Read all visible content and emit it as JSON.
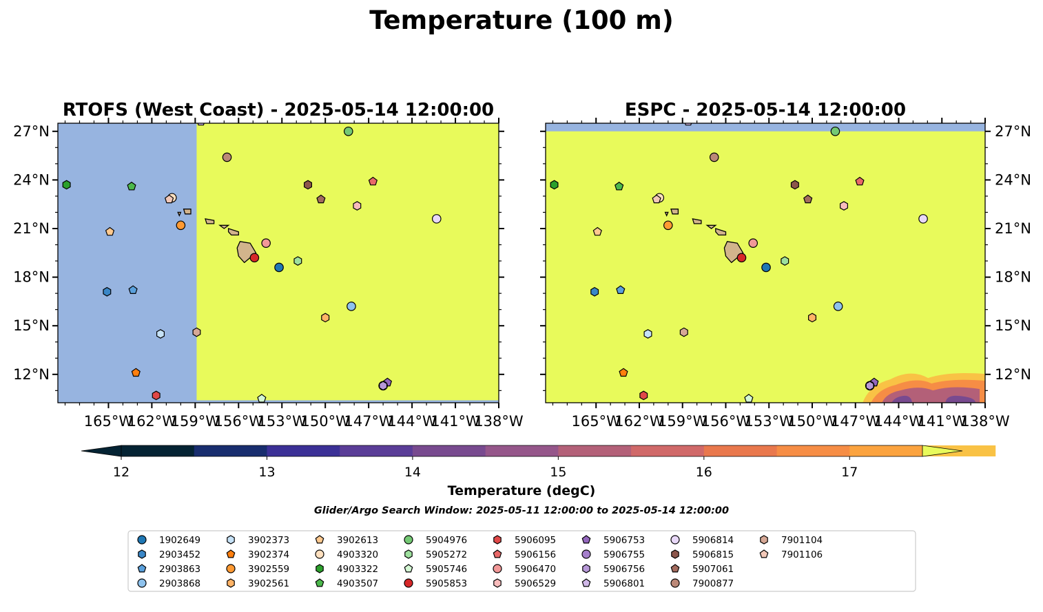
{
  "figure": {
    "title": "Temperature (100 m)",
    "subtitle": "Glider/Argo Search Window: 2025-05-11 12:00:00 to 2025-05-14 12:00:00"
  },
  "colorbar": {
    "label": "Temperature (degC)",
    "range": [
      11.75,
      17.5
    ],
    "ticks": [
      "12",
      "13",
      "14",
      "15",
      "16",
      "17"
    ],
    "colors": [
      "#042333",
      "#182d6e",
      "#3b3096",
      "#5a3d97",
      "#784a8f",
      "#95568a",
      "#b36078",
      "#d06969",
      "#e9784d",
      "#f68d45",
      "#fba33f",
      "#f9c245"
    ],
    "over_color": "#e8fa5b",
    "under_color": "#042333"
  },
  "markers": [
    {
      "id": "1902649",
      "shape": "circle",
      "color": "#1f77b4"
    },
    {
      "id": "2903452",
      "shape": "hexagon",
      "color": "#3a87c7"
    },
    {
      "id": "2903863",
      "shape": "pentagon",
      "color": "#5aa0dc"
    },
    {
      "id": "2903868",
      "shape": "circle",
      "color": "#8ec2ed"
    },
    {
      "id": "3902373",
      "shape": "hexagon",
      "color": "#c6e2f7"
    },
    {
      "id": "3902374",
      "shape": "pentagon",
      "color": "#ff7f0e"
    },
    {
      "id": "3902559",
      "shape": "circle",
      "color": "#ff9a33"
    },
    {
      "id": "3902561",
      "shape": "hexagon",
      "color": "#ffb366"
    },
    {
      "id": "3902613",
      "shape": "pentagon",
      "color": "#ffc98f"
    },
    {
      "id": "4903320",
      "shape": "circle",
      "color": "#ffe0bf"
    },
    {
      "id": "4903322",
      "shape": "hexagon",
      "color": "#2ca02c"
    },
    {
      "id": "4903507",
      "shape": "pentagon",
      "color": "#4cb84c"
    },
    {
      "id": "5904976",
      "shape": "circle",
      "color": "#74c974"
    },
    {
      "id": "5905272",
      "shape": "hexagon",
      "color": "#9ee09e"
    },
    {
      "id": "5905746",
      "shape": "pentagon",
      "color": "#d4f7d4"
    },
    {
      "id": "5905853",
      "shape": "circle",
      "color": "#d62728"
    },
    {
      "id": "5906095",
      "shape": "hexagon",
      "color": "#e04848"
    },
    {
      "id": "5906156",
      "shape": "pentagon",
      "color": "#e86868"
    },
    {
      "id": "5906470",
      "shape": "circle",
      "color": "#f29898"
    },
    {
      "id": "5906529",
      "shape": "hexagon",
      "color": "#f8bcbc"
    },
    {
      "id": "5906753",
      "shape": "pentagon",
      "color": "#9467bd"
    },
    {
      "id": "5906755",
      "shape": "circle",
      "color": "#a57fcb"
    },
    {
      "id": "5906756",
      "shape": "hexagon",
      "color": "#b798d8"
    },
    {
      "id": "5906801",
      "shape": "pentagon",
      "color": "#d0b8e8"
    },
    {
      "id": "5906814",
      "shape": "circle",
      "color": "#e8d8f8"
    },
    {
      "id": "5906815",
      "shape": "hexagon",
      "color": "#8c564b"
    },
    {
      "id": "5907061",
      "shape": "pentagon",
      "color": "#a36b5e"
    },
    {
      "id": "7900877",
      "shape": "circle",
      "color": "#bb8877"
    },
    {
      "id": "7901104",
      "shape": "hexagon",
      "color": "#d6a896"
    },
    {
      "id": "7901106",
      "shape": "pentagon",
      "color": "#f2c8b8"
    }
  ],
  "chart_data": [
    {
      "type": "map",
      "title": "RTOFS (West Coast) - 2025-05-14 12:00:00",
      "xlim": [
        -168.5,
        -138
      ],
      "ylim": [
        10.25,
        27.5
      ],
      "xticks": [
        "165°W",
        "162°W",
        "159°W",
        "156°W",
        "153°W",
        "150°W",
        "147°W",
        "144°W",
        "141°W",
        "138°W"
      ],
      "yticks": [
        "27°N",
        "24°N",
        "21°N",
        "18°N",
        "15°N",
        "12°N"
      ],
      "ytick_side": "left",
      "nodata_color": "#97b4e0",
      "field": {
        "fill": "#e8fa5b",
        "lon_min": -158.9,
        "lon_max": -138,
        "lat_min": 10.4,
        "lat_max": 27.5
      },
      "warm_patch": null,
      "floats": [
        {
          "id": "1902649",
          "lon": -153.2,
          "lat": 18.6
        },
        {
          "id": "2903452",
          "lon": -165.1,
          "lat": 17.1
        },
        {
          "id": "2903863",
          "lon": -163.3,
          "lat": 17.2
        },
        {
          "id": "2903868",
          "lon": -148.2,
          "lat": 16.2
        },
        {
          "id": "3902373",
          "lon": -161.4,
          "lat": 14.5
        },
        {
          "id": "3902374",
          "lon": -163.1,
          "lat": 12.1
        },
        {
          "id": "3902559",
          "lon": -160.0,
          "lat": 21.2
        },
        {
          "id": "3902561",
          "lon": -150.0,
          "lat": 15.5
        },
        {
          "id": "3902613",
          "lon": -164.9,
          "lat": 20.8
        },
        {
          "id": "4903320",
          "lon": -160.6,
          "lat": 22.9
        },
        {
          "id": "4903322",
          "lon": -167.9,
          "lat": 23.7
        },
        {
          "id": "4903507",
          "lon": -163.4,
          "lat": 23.6
        },
        {
          "id": "5904976",
          "lon": -148.4,
          "lat": 27.0
        },
        {
          "id": "5905272",
          "lon": -151.9,
          "lat": 19.0
        },
        {
          "id": "5905746",
          "lon": -154.4,
          "lat": 10.5
        },
        {
          "id": "5905853",
          "lon": -154.9,
          "lat": 19.2
        },
        {
          "id": "5906095",
          "lon": -161.7,
          "lat": 10.7
        },
        {
          "id": "5906156",
          "lon": -146.7,
          "lat": 23.9
        },
        {
          "id": "5906470",
          "lon": -154.1,
          "lat": 20.1
        },
        {
          "id": "5906529",
          "lon": -147.8,
          "lat": 22.4
        },
        {
          "id": "5906753",
          "lon": -145.7,
          "lat": 11.5
        },
        {
          "id": "5906755",
          "lon": -146.0,
          "lat": 11.3
        },
        {
          "id": "5906756",
          "lon": -146.0,
          "lat": 11.3
        },
        {
          "id": "5906801",
          "lon": -158.6,
          "lat": 27.6
        },
        {
          "id": "5906814",
          "lon": -142.3,
          "lat": 21.6
        },
        {
          "id": "5906815",
          "lon": -151.2,
          "lat": 23.7
        },
        {
          "id": "5907061",
          "lon": -150.3,
          "lat": 22.8
        },
        {
          "id": "7900877",
          "lon": -156.8,
          "lat": 25.4
        },
        {
          "id": "7901104",
          "lon": -158.9,
          "lat": 14.6
        },
        {
          "id": "7901106",
          "lon": -160.8,
          "lat": 22.8
        }
      ]
    },
    {
      "type": "map",
      "title": "ESPC - 2025-05-14 12:00:00",
      "xlim": [
        -168.5,
        -138
      ],
      "ylim": [
        10.25,
        27.5
      ],
      "xticks": [
        "165°W",
        "162°W",
        "159°W",
        "156°W",
        "153°W",
        "150°W",
        "147°W",
        "144°W",
        "141°W",
        "138°W"
      ],
      "yticks": [
        "27°N",
        "24°N",
        "21°N",
        "18°N",
        "15°N",
        "12°N"
      ],
      "ytick_side": "right",
      "nodata_color": "#97b4e0",
      "field": {
        "fill": "#e8fa5b",
        "lon_min": -168.5,
        "lon_max": -138,
        "lat_min": 10.25,
        "lat_max": 27.0
      },
      "warm_patch": {
        "lon_min": -146.5,
        "lon_max": -138,
        "lat_min": 10.25,
        "lat_max": 12.2
      },
      "floats": [
        {
          "id": "1902649",
          "lon": -153.2,
          "lat": 18.6
        },
        {
          "id": "2903452",
          "lon": -165.1,
          "lat": 17.1
        },
        {
          "id": "2903863",
          "lon": -163.3,
          "lat": 17.2
        },
        {
          "id": "2903868",
          "lon": -148.2,
          "lat": 16.2
        },
        {
          "id": "3902373",
          "lon": -161.4,
          "lat": 14.5
        },
        {
          "id": "3902374",
          "lon": -163.1,
          "lat": 12.1
        },
        {
          "id": "3902559",
          "lon": -160.0,
          "lat": 21.2
        },
        {
          "id": "3902561",
          "lon": -150.0,
          "lat": 15.5
        },
        {
          "id": "3902613",
          "lon": -164.9,
          "lat": 20.8
        },
        {
          "id": "4903320",
          "lon": -160.6,
          "lat": 22.9
        },
        {
          "id": "4903322",
          "lon": -167.9,
          "lat": 23.7
        },
        {
          "id": "4903507",
          "lon": -163.4,
          "lat": 23.6
        },
        {
          "id": "5904976",
          "lon": -148.4,
          "lat": 27.0
        },
        {
          "id": "5905272",
          "lon": -151.9,
          "lat": 19.0
        },
        {
          "id": "5905746",
          "lon": -154.4,
          "lat": 10.5
        },
        {
          "id": "5905853",
          "lon": -154.9,
          "lat": 19.2
        },
        {
          "id": "5906095",
          "lon": -161.7,
          "lat": 10.7
        },
        {
          "id": "5906156",
          "lon": -146.7,
          "lat": 23.9
        },
        {
          "id": "5906470",
          "lon": -154.1,
          "lat": 20.1
        },
        {
          "id": "5906529",
          "lon": -147.8,
          "lat": 22.4
        },
        {
          "id": "5906753",
          "lon": -145.7,
          "lat": 11.5
        },
        {
          "id": "5906755",
          "lon": -146.0,
          "lat": 11.3
        },
        {
          "id": "5906756",
          "lon": -146.0,
          "lat": 11.3
        },
        {
          "id": "5906801",
          "lon": -158.6,
          "lat": 27.6
        },
        {
          "id": "5906814",
          "lon": -142.3,
          "lat": 21.6
        },
        {
          "id": "5906815",
          "lon": -151.2,
          "lat": 23.7
        },
        {
          "id": "5907061",
          "lon": -150.3,
          "lat": 22.8
        },
        {
          "id": "7900877",
          "lon": -156.8,
          "lat": 25.4
        },
        {
          "id": "7901104",
          "lon": -158.9,
          "lat": 14.6
        },
        {
          "id": "7901106",
          "lon": -160.8,
          "lat": 22.8
        }
      ]
    }
  ]
}
